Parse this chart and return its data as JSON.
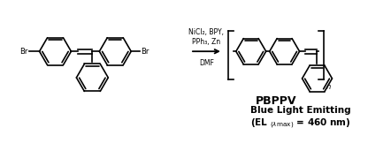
{
  "background_color": "#ffffff",
  "fig_width": 4.16,
  "fig_height": 1.62,
  "dpi": 100,
  "reagents_line1": "NiCl₂, BPY,",
  "reagents_line2": "PPh₃, Zn",
  "reagents_line3": "DMF",
  "polymer_label": "PBPPV",
  "blue_light_line1": "Blue Light Emitting",
  "blue_light_line2": "(EL $_{(\\lambda max)}$ = 460 nm)",
  "text_color": "#000000",
  "line_color": "#000000"
}
